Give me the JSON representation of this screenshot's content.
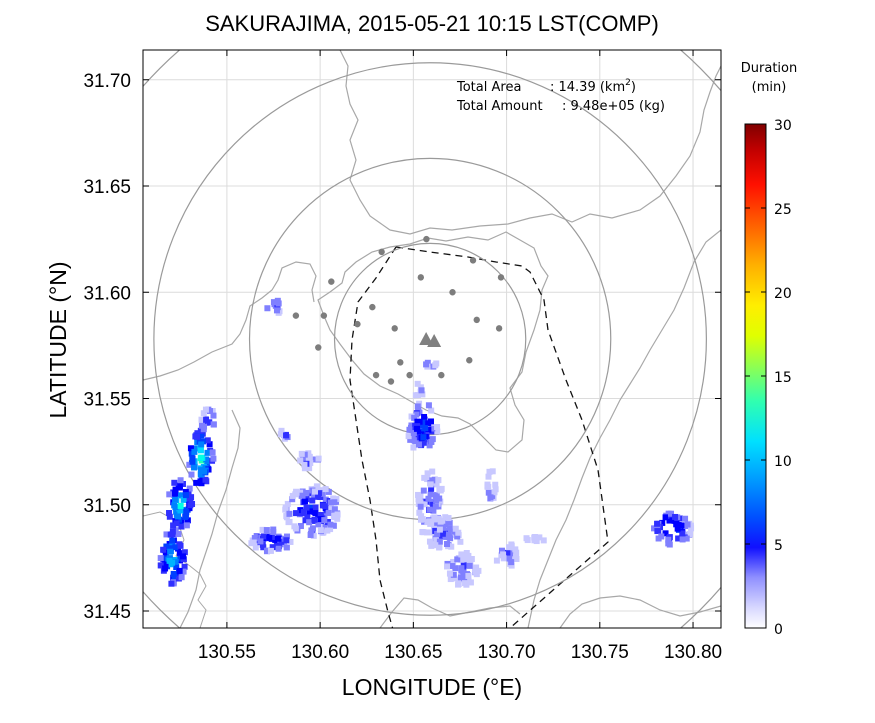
{
  "title": "SAKURAJIMA, 2015-05-21 10:15 LST(COMP)",
  "info": {
    "area_label": "Total Area",
    "area_value": ": 14.39 (km",
    "area_sup": "2",
    "area_close": ")",
    "amount_label": "Total Amount",
    "amount_value": ": 9.48e+05 (kg)"
  },
  "x_axis": {
    "label": "LONGITUDE (°E)",
    "range": [
      130.505,
      130.815
    ],
    "ticks": [
      130.55,
      130.6,
      130.65,
      130.7,
      130.75,
      130.8
    ],
    "tick_labels": [
      "130.55",
      "130.60",
      "130.65",
      "130.70",
      "130.75",
      "130.80"
    ]
  },
  "y_axis": {
    "label": "LATITUDE (°N)",
    "range": [
      31.442,
      31.714
    ],
    "ticks": [
      31.45,
      31.5,
      31.55,
      31.6,
      31.65,
      31.7
    ],
    "tick_labels": [
      "31.45",
      "31.50",
      "31.55",
      "31.60",
      "31.65",
      "31.70"
    ]
  },
  "colorbar": {
    "title_line1": "Duration",
    "title_line2": "(min)",
    "range": [
      0,
      30
    ],
    "ticks": [
      "0",
      "5",
      "10",
      "15",
      "20",
      "25",
      "30"
    ],
    "colors": [
      "#ffffff",
      "#c8c8ff",
      "#8080ff",
      "#3030ff",
      "#0000ff",
      "#0040ff",
      "#0080ff",
      "#00b4ff",
      "#00dcff",
      "#00ffe6",
      "#20ffb4",
      "#60ff80",
      "#a0ff40",
      "#e0ff00",
      "#ffff00",
      "#ffd800",
      "#ffb000",
      "#ff8800",
      "#ff6000",
      "#ff3000",
      "#ff0000",
      "#e00000",
      "#c00000",
      "#a00000",
      "#800000"
    ]
  },
  "map": {
    "crater_icon": "volcano-triangle-icon",
    "crater_center": [
      130.659,
      31.578
    ],
    "range_circles_deg": [
      0.045,
      0.085,
      0.13,
      0.18
    ],
    "stations": [
      [
        130.633,
        31.619
      ],
      [
        130.657,
        31.625
      ],
      [
        130.606,
        31.605
      ],
      [
        130.628,
        31.593
      ],
      [
        130.654,
        31.607
      ],
      [
        130.671,
        31.6
      ],
      [
        130.682,
        31.615
      ],
      [
        130.697,
        31.607
      ],
      [
        130.587,
        31.589
      ],
      [
        130.602,
        31.589
      ],
      [
        130.62,
        31.585
      ],
      [
        130.64,
        31.583
      ],
      [
        130.684,
        31.587
      ],
      [
        130.696,
        31.583
      ],
      [
        130.599,
        31.574
      ],
      [
        130.643,
        31.567
      ],
      [
        130.68,
        31.568
      ],
      [
        130.63,
        31.561
      ],
      [
        130.648,
        31.561
      ],
      [
        130.665,
        31.561
      ],
      [
        130.638,
        31.558
      ]
    ],
    "deposits": [
      {
        "lon": 130.521,
        "lat": 31.475,
        "rx": 0.006,
        "ry": 0.014,
        "dur": 9
      },
      {
        "lon": 130.525,
        "lat": 31.5,
        "rx": 0.006,
        "ry": 0.012,
        "dur": 10
      },
      {
        "lon": 130.536,
        "lat": 31.522,
        "rx": 0.006,
        "ry": 0.014,
        "dur": 11
      },
      {
        "lon": 130.54,
        "lat": 31.54,
        "rx": 0.004,
        "ry": 0.005,
        "dur": 5
      },
      {
        "lon": 130.575,
        "lat": 31.593,
        "rx": 0.004,
        "ry": 0.004,
        "dur": 4
      },
      {
        "lon": 130.574,
        "lat": 31.483,
        "rx": 0.01,
        "ry": 0.006,
        "dur": 5
      },
      {
        "lon": 130.596,
        "lat": 31.497,
        "rx": 0.013,
        "ry": 0.012,
        "dur": 5
      },
      {
        "lon": 130.581,
        "lat": 31.533,
        "rx": 0.003,
        "ry": 0.003,
        "dur": 3
      },
      {
        "lon": 130.593,
        "lat": 31.521,
        "rx": 0.006,
        "ry": 0.004,
        "dur": 3
      },
      {
        "lon": 130.655,
        "lat": 31.536,
        "rx": 0.007,
        "ry": 0.012,
        "dur": 6
      },
      {
        "lon": 130.659,
        "lat": 31.502,
        "rx": 0.006,
        "ry": 0.014,
        "dur": 3
      },
      {
        "lon": 130.666,
        "lat": 31.487,
        "rx": 0.01,
        "ry": 0.008,
        "dur": 3
      },
      {
        "lon": 130.676,
        "lat": 31.47,
        "rx": 0.008,
        "ry": 0.008,
        "dur": 3
      },
      {
        "lon": 130.7,
        "lat": 31.476,
        "rx": 0.005,
        "ry": 0.006,
        "dur": 3
      },
      {
        "lon": 130.716,
        "lat": 31.483,
        "rx": 0.006,
        "ry": 0.002,
        "dur": 2
      },
      {
        "lon": 130.692,
        "lat": 31.508,
        "rx": 0.002,
        "ry": 0.009,
        "dur": 3
      },
      {
        "lon": 130.789,
        "lat": 31.489,
        "rx": 0.009,
        "ry": 0.008,
        "dur": 7
      },
      {
        "lon": 130.66,
        "lat": 31.566,
        "rx": 0.003,
        "ry": 0.002,
        "dur": 3
      },
      {
        "lon": 130.653,
        "lat": 31.554,
        "rx": 0.003,
        "ry": 0.003,
        "dur": 3
      }
    ]
  }
}
